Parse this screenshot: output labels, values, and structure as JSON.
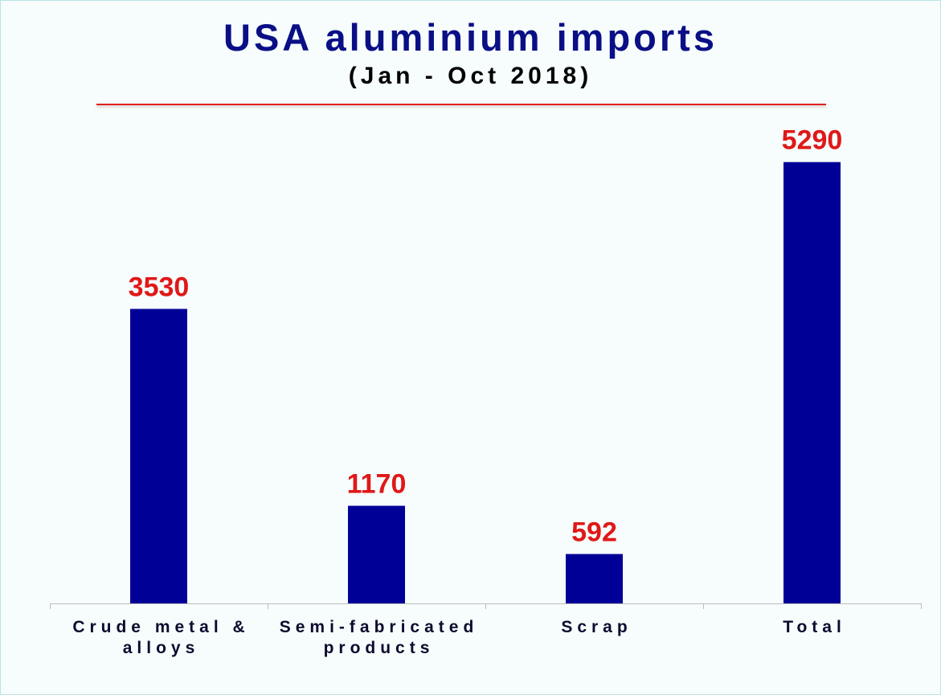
{
  "chart_data": {
    "type": "bar",
    "title": "USA aluminium imports",
    "subtitle": "(Jan - Oct 2018)",
    "categories": [
      [
        "Crude metal &",
        "alloys"
      ],
      [
        "Semi-fabricated",
        "products"
      ],
      [
        "Scrap"
      ],
      [
        "Total"
      ]
    ],
    "values": [
      3530,
      1170,
      592,
      5290
    ],
    "value_labels": [
      "3530",
      "1170",
      "592",
      "5290"
    ],
    "ylim": [
      0,
      6000
    ],
    "grid": false,
    "legend": "none",
    "colors": {
      "bar": "#000097",
      "value_label": "#e01818",
      "title": "#0a0f86",
      "rule": "#e02020",
      "axis": "#bdbdbd"
    }
  }
}
